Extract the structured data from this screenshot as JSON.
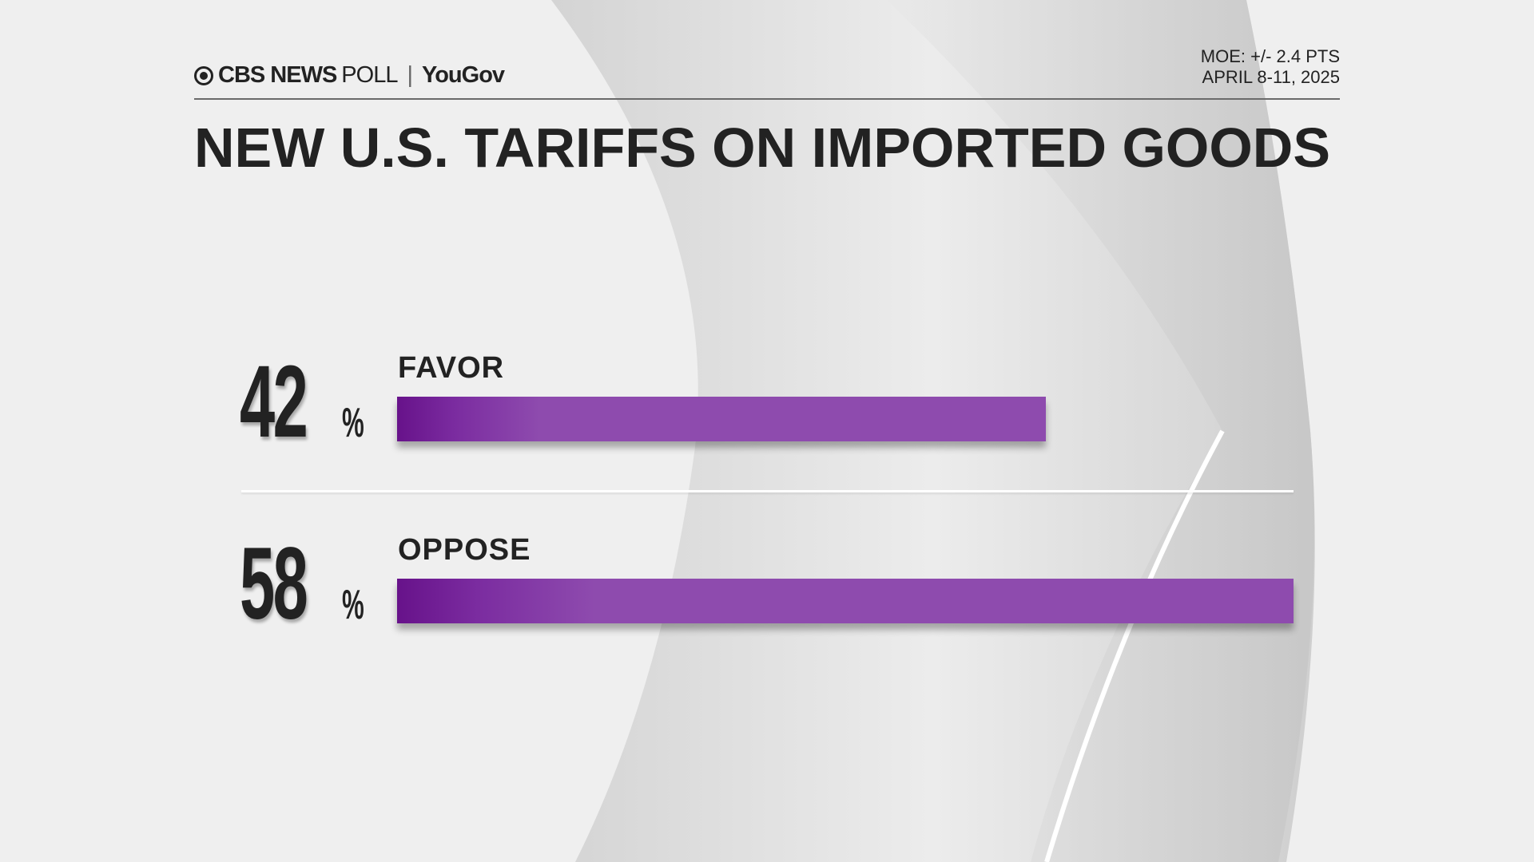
{
  "header": {
    "logo_text": "CBS NEWS POLL",
    "logo_cbs": "CBS NEWS",
    "logo_poll": "POLL",
    "partner": "YouGov",
    "moe": "MOE: +/- 2.4 PTS",
    "dates": "APRIL 8-11, 2025"
  },
  "colors": {
    "bar": "#8e4bae",
    "bar_dark": "#67128a",
    "text": "#222222",
    "background": "#efefef"
  },
  "chart_data": {
    "type": "bar",
    "orientation": "horizontal",
    "title": "NEW U.S. TARIFFS ON IMPORTED GOODS",
    "categories": [
      "FAVOR",
      "OPPOSE"
    ],
    "values": [
      42,
      58
    ],
    "value_labels": [
      "42",
      "58"
    ],
    "unit": "%",
    "grid": false
  }
}
